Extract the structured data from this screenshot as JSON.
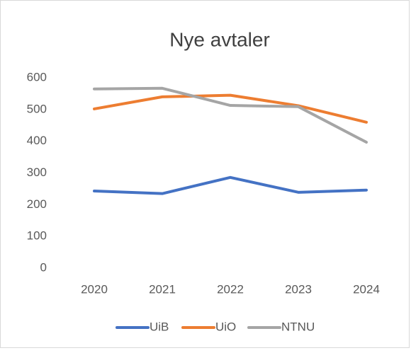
{
  "chart_data": {
    "type": "line",
    "title": "Nye avtaler",
    "categories": [
      "2020",
      "2021",
      "2022",
      "2023",
      "2024"
    ],
    "series": [
      {
        "name": "UiB",
        "color": "#4472c4",
        "values": [
          243,
          235,
          286,
          239,
          246
        ]
      },
      {
        "name": "UiO",
        "color": "#ed7d31",
        "values": [
          502,
          540,
          545,
          512,
          460
        ]
      },
      {
        "name": "NTNU",
        "color": "#a5a5a5",
        "values": [
          565,
          567,
          513,
          509,
          397
        ]
      }
    ],
    "ylim": [
      0,
      600
    ],
    "yticks": [
      0,
      100,
      200,
      300,
      400,
      500,
      600
    ],
    "grid": false,
    "legend": "bottom"
  }
}
